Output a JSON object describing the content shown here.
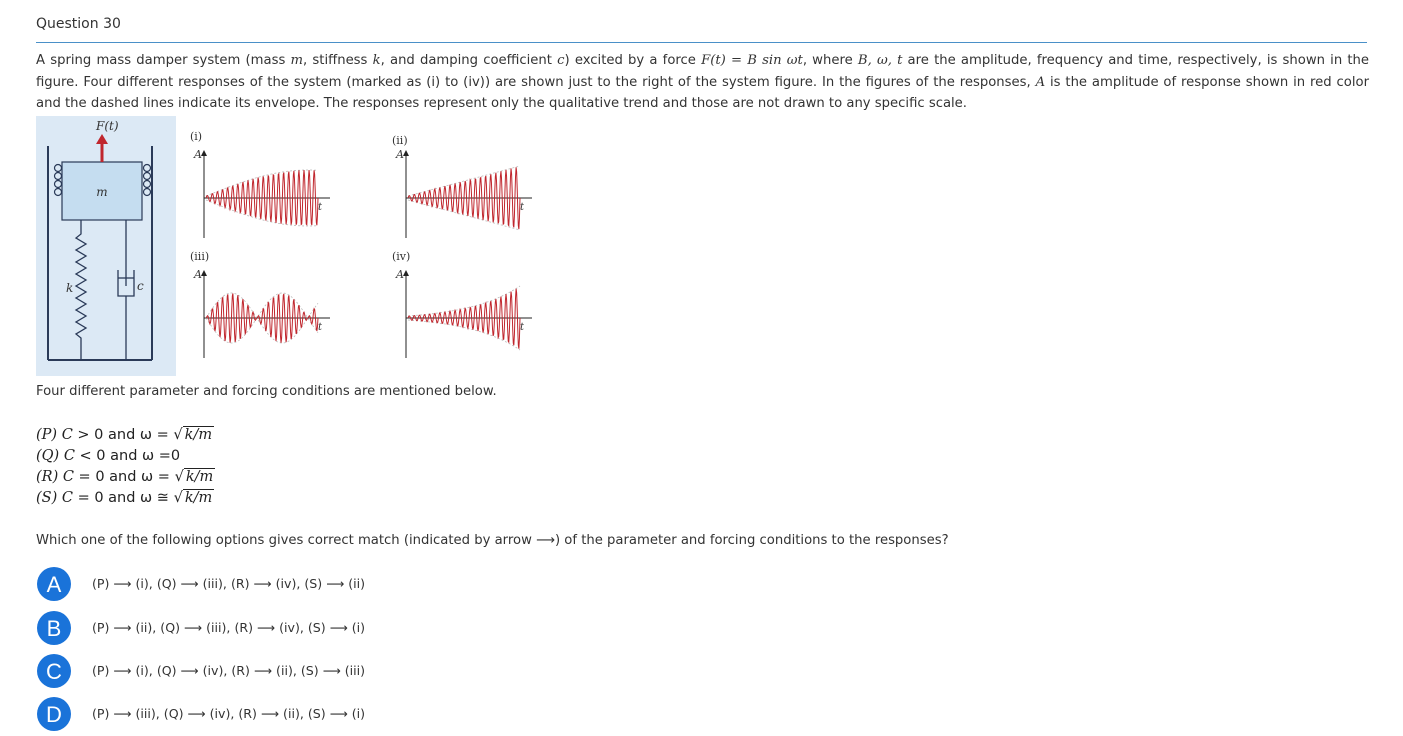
{
  "question_title": "Question 30",
  "paragraph": [
    "A spring mass damper system (mass ",
    "m",
    ", stiffness ",
    "k",
    ", and damping coefficient ",
    "c",
    ") excited by a force ",
    "F(t) = B sin ωt",
    ", where ",
    "B, ω, t",
    " are the amplitude, frequency and time, respectively, is shown in the figure. Four different responses of the system (marked as (i) to (iv)) are shown just to the right of the system figure. In the figures of the responses, ",
    "A",
    " is the amplitude of response shown in red color and the dashed lines indicate its envelope. The responses represent only the qualitative trend and those are not drawn to any specific scale."
  ],
  "figure": {
    "force_label": "F(t)",
    "mass_label": "m",
    "spring_label": "k",
    "damper_label": "c",
    "panels": [
      {
        "label": "(i)",
        "y_axis": "A",
        "x_axis": "t"
      },
      {
        "label": "(ii)",
        "y_axis": "A",
        "x_axis": "t"
      },
      {
        "label": "(iii)",
        "y_axis": "A",
        "x_axis": "t"
      },
      {
        "label": "(iv)",
        "y_axis": "A",
        "x_axis": "t"
      }
    ],
    "colors": {
      "response": "#c0262d",
      "force_arrow": "#c0262d",
      "mass_fill": "#cfe3f3",
      "frame": "#2a3a58",
      "envelope": "#bbbbbb"
    }
  },
  "conditions_intro": "Four different parameter and forcing conditions are mentioned below.",
  "conditions": [
    {
      "label": "(P)",
      "var": "C",
      "text": " > 0 and ω = ",
      "rhs": "k/m",
      "rhs_sqrt": true
    },
    {
      "label": "(Q)",
      "var": "C",
      "text": " < 0 and ω ",
      "rhs": "0",
      "rhs_sqrt": false,
      "symbol": "="
    },
    {
      "label": "(R)",
      "var": "C",
      "text": " = 0 and ω = ",
      "rhs": "k/m",
      "rhs_sqrt": true
    },
    {
      "label": "(S)",
      "var": "C",
      "text": " = 0 and ω ≅ ",
      "rhs": "k/m",
      "rhs_sqrt": true
    }
  ],
  "prompt": "Which one of the following options gives correct match (indicated by arrow ⟶) of the parameter and forcing conditions to the responses?",
  "options": [
    {
      "letter": "A",
      "text": "(P) ⟶ (i), (Q) ⟶ (iii), (R) ⟶ (iv), (S) ⟶ (ii)"
    },
    {
      "letter": "B",
      "text": "(P) ⟶ (ii), (Q) ⟶ (iii), (R) ⟶ (iv), (S) ⟶ (i)"
    },
    {
      "letter": "C",
      "text": "(P) ⟶ (i), (Q) ⟶ (iv), (R) ⟶ (ii), (S) ⟶ (iii)"
    },
    {
      "letter": "D",
      "text": "(P) ⟶ (iii), (Q) ⟶ (iv), (R) ⟶ (ii), (S) ⟶ (i)"
    }
  ],
  "option_color": "#1a73d9"
}
